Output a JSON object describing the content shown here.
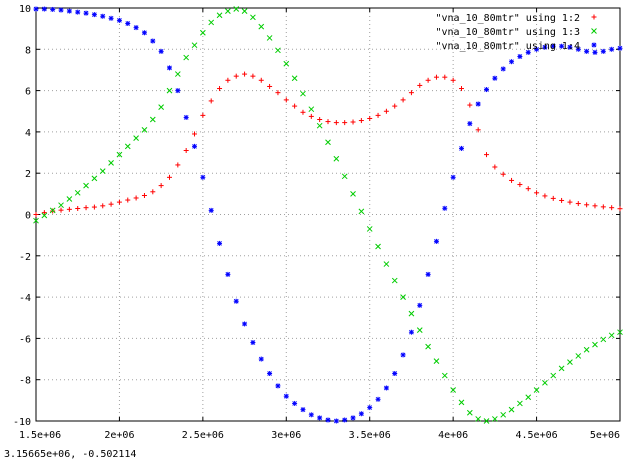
{
  "status_bar": {
    "coordinates": "3.15665e+06, -0.502114"
  },
  "colors": {
    "series_1": "#ff0000",
    "series_2": "#00cc00",
    "series_3": "#0000ff",
    "grid": "#a0a0a0",
    "frame": "#000000"
  },
  "chart_data": {
    "type": "scatter",
    "title": "",
    "xlabel": "",
    "ylabel": "",
    "xlim": [
      1500000,
      5000000
    ],
    "ylim": [
      -10,
      10
    ],
    "grid": true,
    "legend_position": "top-right",
    "x_ticks": [
      {
        "value": 1500000,
        "label": "1.5e+06"
      },
      {
        "value": 2000000,
        "label": "2e+06"
      },
      {
        "value": 2500000,
        "label": "2.5e+06"
      },
      {
        "value": 3000000,
        "label": "3e+06"
      },
      {
        "value": 3500000,
        "label": "3.5e+06"
      },
      {
        "value": 4000000,
        "label": "4e+06"
      },
      {
        "value": 4500000,
        "label": "4.5e+06"
      },
      {
        "value": 5000000,
        "label": "5e+06"
      }
    ],
    "y_ticks": [
      {
        "value": 10,
        "label": "10"
      },
      {
        "value": 8,
        "label": "8"
      },
      {
        "value": 6,
        "label": "6"
      },
      {
        "value": 4,
        "label": "4"
      },
      {
        "value": 2,
        "label": "2"
      },
      {
        "value": 0,
        "label": "0"
      },
      {
        "value": -2,
        "label": "-2"
      },
      {
        "value": -4,
        "label": "-4"
      },
      {
        "value": -6,
        "label": "-6"
      },
      {
        "value": -8,
        "label": "-8"
      },
      {
        "value": -10,
        "label": "-10"
      }
    ],
    "x": [
      1500000,
      1550000,
      1600000,
      1650000,
      1700000,
      1750000,
      1800000,
      1850000,
      1900000,
      1950000,
      2000000,
      2050000,
      2100000,
      2150000,
      2200000,
      2250000,
      2300000,
      2350000,
      2400000,
      2450000,
      2500000,
      2550000,
      2600000,
      2650000,
      2700000,
      2750000,
      2800000,
      2850000,
      2900000,
      2950000,
      3000000,
      3050000,
      3100000,
      3150000,
      3200000,
      3250000,
      3300000,
      3350000,
      3400000,
      3450000,
      3500000,
      3550000,
      3600000,
      3650000,
      3700000,
      3750000,
      3800000,
      3850000,
      3900000,
      3950000,
      4000000,
      4050000,
      4100000,
      4150000,
      4200000,
      4250000,
      4300000,
      4350000,
      4400000,
      4450000,
      4500000,
      4550000,
      4600000,
      4650000,
      4700000,
      4750000,
      4800000,
      4850000,
      4900000,
      4950000,
      5000000
    ],
    "series": [
      {
        "name": "\"vna_10_80mtr\" using 1:2",
        "marker": "+",
        "values": [
          0.0,
          0.09,
          0.17,
          0.21,
          0.25,
          0.29,
          0.33,
          0.36,
          0.42,
          0.5,
          0.6,
          0.7,
          0.8,
          0.92,
          1.1,
          1.4,
          1.8,
          2.4,
          3.1,
          3.9,
          4.8,
          5.5,
          6.1,
          6.5,
          6.7,
          6.8,
          6.7,
          6.5,
          6.2,
          5.9,
          5.55,
          5.25,
          4.95,
          4.75,
          4.6,
          4.5,
          4.45,
          4.45,
          4.48,
          4.55,
          4.65,
          4.8,
          5.0,
          5.25,
          5.55,
          5.9,
          6.25,
          6.5,
          6.65,
          6.65,
          6.5,
          6.1,
          5.3,
          4.1,
          2.9,
          2.3,
          1.95,
          1.65,
          1.45,
          1.25,
          1.05,
          0.9,
          0.78,
          0.68,
          0.6,
          0.53,
          0.47,
          0.42,
          0.37,
          0.33,
          0.28
        ]
      },
      {
        "name": "\"vna_10_80mtr\" using 1:3",
        "marker": "x",
        "values": [
          -0.3,
          -0.05,
          0.2,
          0.45,
          0.75,
          1.05,
          1.4,
          1.75,
          2.1,
          2.5,
          2.9,
          3.3,
          3.7,
          4.1,
          4.6,
          5.2,
          6.0,
          6.8,
          7.6,
          8.2,
          8.8,
          9.3,
          9.65,
          9.85,
          9.95,
          9.85,
          9.55,
          9.1,
          8.55,
          7.95,
          7.3,
          6.6,
          5.85,
          5.1,
          4.3,
          3.5,
          2.7,
          1.85,
          1.0,
          0.15,
          -0.7,
          -1.55,
          -2.4,
          -3.2,
          -4.0,
          -4.8,
          -5.6,
          -6.4,
          -7.1,
          -7.8,
          -8.5,
          -9.1,
          -9.6,
          -9.9,
          -10.0,
          -9.9,
          -9.7,
          -9.45,
          -9.15,
          -8.85,
          -8.5,
          -8.15,
          -7.8,
          -7.45,
          -7.15,
          -6.85,
          -6.55,
          -6.3,
          -6.05,
          -5.85,
          -5.7
        ]
      },
      {
        "name": "\"vna_10_80mtr\" using 1:4",
        "marker": "*",
        "values": [
          9.95,
          9.95,
          9.93,
          9.9,
          9.85,
          9.8,
          9.75,
          9.68,
          9.6,
          9.5,
          9.4,
          9.25,
          9.05,
          8.8,
          8.4,
          7.9,
          7.1,
          6.0,
          4.7,
          3.3,
          1.8,
          0.2,
          -1.4,
          -2.9,
          -4.2,
          -5.3,
          -6.2,
          -7.0,
          -7.7,
          -8.3,
          -8.8,
          -9.15,
          -9.45,
          -9.7,
          -9.85,
          -9.95,
          -10.0,
          -9.95,
          -9.85,
          -9.65,
          -9.35,
          -8.95,
          -8.4,
          -7.7,
          -6.8,
          -5.7,
          -4.4,
          -2.9,
          -1.3,
          0.3,
          1.8,
          3.2,
          4.4,
          5.35,
          6.05,
          6.6,
          7.05,
          7.4,
          7.65,
          7.85,
          8.0,
          8.1,
          8.15,
          8.15,
          8.1,
          8.0,
          7.9,
          7.85,
          7.9,
          8.0,
          8.05
        ]
      }
    ]
  }
}
